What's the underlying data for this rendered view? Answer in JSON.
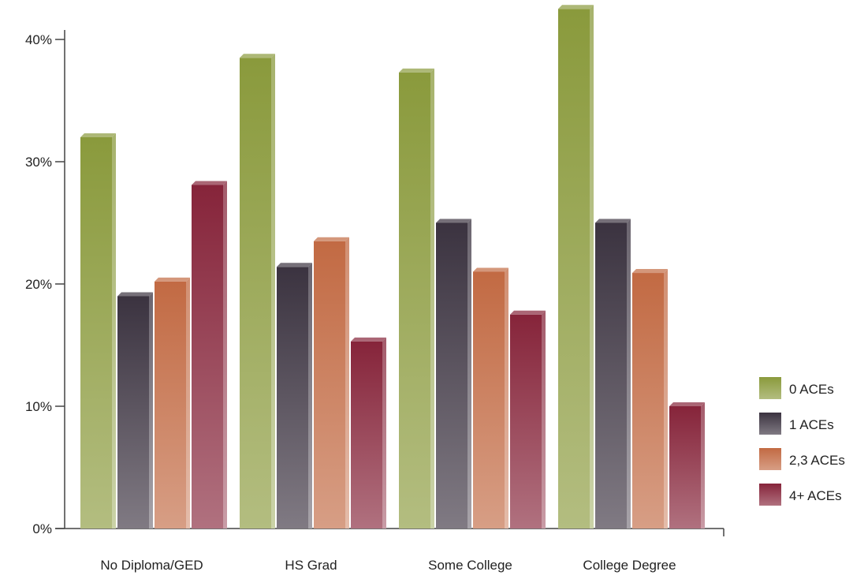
{
  "chart_data": {
    "type": "bar",
    "title": "",
    "xlabel": "",
    "ylabel": "",
    "categories": [
      "No Diploma/GED",
      "HS Grad",
      "Some College",
      "College Degree"
    ],
    "series": [
      {
        "name": "0 ACEs",
        "color": "#8a9a3c",
        "values": [
          32,
          38.5,
          37.3,
          42.5
        ]
      },
      {
        "name": "1 ACEs",
        "color": "#3b3340",
        "values": [
          19,
          21.4,
          25,
          25
        ]
      },
      {
        "name": "2,3 ACEs",
        "color": "#c26a43",
        "values": [
          20.2,
          23.5,
          21,
          20.9
        ]
      },
      {
        "name": "4+ ACEs",
        "color": "#86243a",
        "values": [
          28.1,
          15.3,
          17.5,
          10
        ]
      }
    ],
    "ylim": [
      0,
      40
    ],
    "yticks": [
      {
        "value": 0,
        "label": "0%"
      },
      {
        "value": 10,
        "label": "10%"
      },
      {
        "value": 20,
        "label": "20%"
      },
      {
        "value": 30,
        "label": "30%"
      },
      {
        "value": 40,
        "label": "40%"
      }
    ],
    "grid": false,
    "legend_position": "right"
  }
}
